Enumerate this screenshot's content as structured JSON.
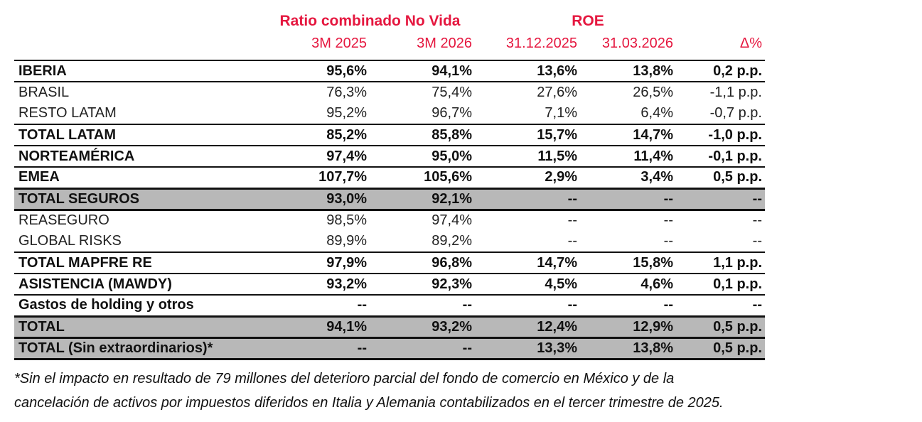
{
  "header": {
    "group1": "Ratio combinado No Vida",
    "group2": "ROE",
    "columns": [
      "3M 2025",
      "3M 2026",
      "31.12.2025",
      "31.03.2026",
      "Δ%"
    ]
  },
  "rows": [
    {
      "label": "IBERIA",
      "v": [
        "95,6%",
        "94,1%",
        "13,6%",
        "13,8%",
        "0,2 p.p."
      ]
    },
    {
      "label": "BRASIL",
      "v": [
        "76,3%",
        "75,4%",
        "27,6%",
        "26,5%",
        "-1,1 p.p."
      ]
    },
    {
      "label": "RESTO LATAM",
      "v": [
        "95,2%",
        "96,7%",
        "7,1%",
        "6,4%",
        "-0,7 p.p."
      ]
    },
    {
      "label": "TOTAL LATAM",
      "v": [
        "85,2%",
        "85,8%",
        "15,7%",
        "14,7%",
        "-1,0 p.p."
      ]
    },
    {
      "label": "NORTEAMÉRICA",
      "v": [
        "97,4%",
        "95,0%",
        "11,5%",
        "11,4%",
        "-0,1 p.p."
      ]
    },
    {
      "label": "EMEA",
      "v": [
        "107,7%",
        "105,6%",
        "2,9%",
        "3,4%",
        "0,5 p.p."
      ]
    },
    {
      "label": "TOTAL SEGUROS",
      "v": [
        "93,0%",
        "92,1%",
        "--",
        "--",
        "--"
      ]
    },
    {
      "label": "REASEGURO",
      "v": [
        "98,5%",
        "97,4%",
        "--",
        "--",
        "--"
      ]
    },
    {
      "label": "GLOBAL RISKS",
      "v": [
        "89,9%",
        "89,2%",
        "--",
        "--",
        "--"
      ]
    },
    {
      "label": "TOTAL MAPFRE RE",
      "v": [
        "97,9%",
        "96,8%",
        "14,7%",
        "15,8%",
        "1,1 p.p."
      ]
    },
    {
      "label": "ASISTENCIA (MAWDY)",
      "v": [
        "93,2%",
        "92,3%",
        "4,5%",
        "4,6%",
        "0,1 p.p."
      ]
    },
    {
      "label": "Gastos de holding y otros",
      "v": [
        "--",
        "--",
        "--",
        "--",
        "--"
      ]
    },
    {
      "label": "TOTAL",
      "v": [
        "94,1%",
        "93,2%",
        "12,4%",
        "12,9%",
        "0,5 p.p."
      ]
    },
    {
      "label": "TOTAL (Sin extraordinarios)*",
      "v": [
        "--",
        "--",
        "13,3%",
        "13,8%",
        "0,5 p.p."
      ]
    }
  ],
  "footnote": {
    "line1": "*Sin el impacto en resultado de 79 millones del deterioro parcial del fondo de comercio en México y de la",
    "line2": "cancelación de activos por impuestos diferidos en Italia y Alemania contabilizados en el tercer trimestre de 2025."
  }
}
